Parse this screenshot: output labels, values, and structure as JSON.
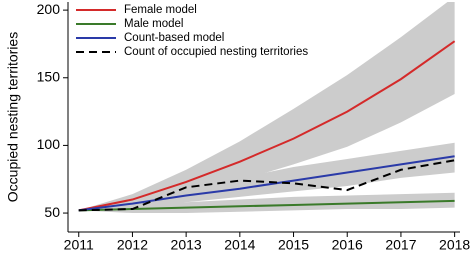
{
  "chart_data": {
    "type": "line",
    "y_label": "Occupied nesting territories",
    "x": [
      2011,
      2012,
      2013,
      2014,
      2015,
      2016,
      2017,
      2018
    ],
    "xlim": [
      2010.8,
      2018.1
    ],
    "xticks": [
      2011,
      2012,
      2013,
      2014,
      2015,
      2016,
      2017,
      2018
    ],
    "ylim": [
      36,
      206
    ],
    "yticks": [
      50,
      100,
      150,
      200
    ],
    "band_color": "#cccccc",
    "legend": "upper-left",
    "series": [
      {
        "name": "Female model",
        "color": "#d42a2a",
        "style": "solid",
        "values": [
          52,
          60,
          73,
          88,
          105,
          125,
          149,
          177
        ],
        "lower": [
          52,
          56,
          64,
          74,
          86,
          99,
          117,
          138
        ],
        "upper": [
          52,
          64,
          82,
          103,
          127,
          152,
          180,
          210
        ]
      },
      {
        "name": "Male model",
        "color": "#3a7a2a",
        "style": "solid",
        "values": [
          52,
          53,
          54,
          55,
          56,
          57,
          58,
          59
        ],
        "lower": [
          52,
          50,
          50,
          51,
          52,
          53,
          53,
          54
        ],
        "upper": [
          52,
          56,
          58,
          60,
          62,
          63,
          64,
          65
        ]
      },
      {
        "name": "Count-based model",
        "color": "#2a3aa8",
        "style": "solid",
        "values": [
          52,
          57,
          63,
          68,
          74,
          80,
          86,
          92
        ],
        "lower": [
          52,
          54,
          58,
          62,
          66,
          70,
          76,
          80
        ],
        "upper": [
          52,
          60,
          68,
          76,
          84,
          90,
          96,
          102
        ]
      },
      {
        "name": "Count of occupied nesting territories",
        "color": "#000000",
        "style": "dashed",
        "values": [
          52,
          53,
          69,
          74,
          72,
          67,
          82,
          89
        ]
      }
    ]
  }
}
